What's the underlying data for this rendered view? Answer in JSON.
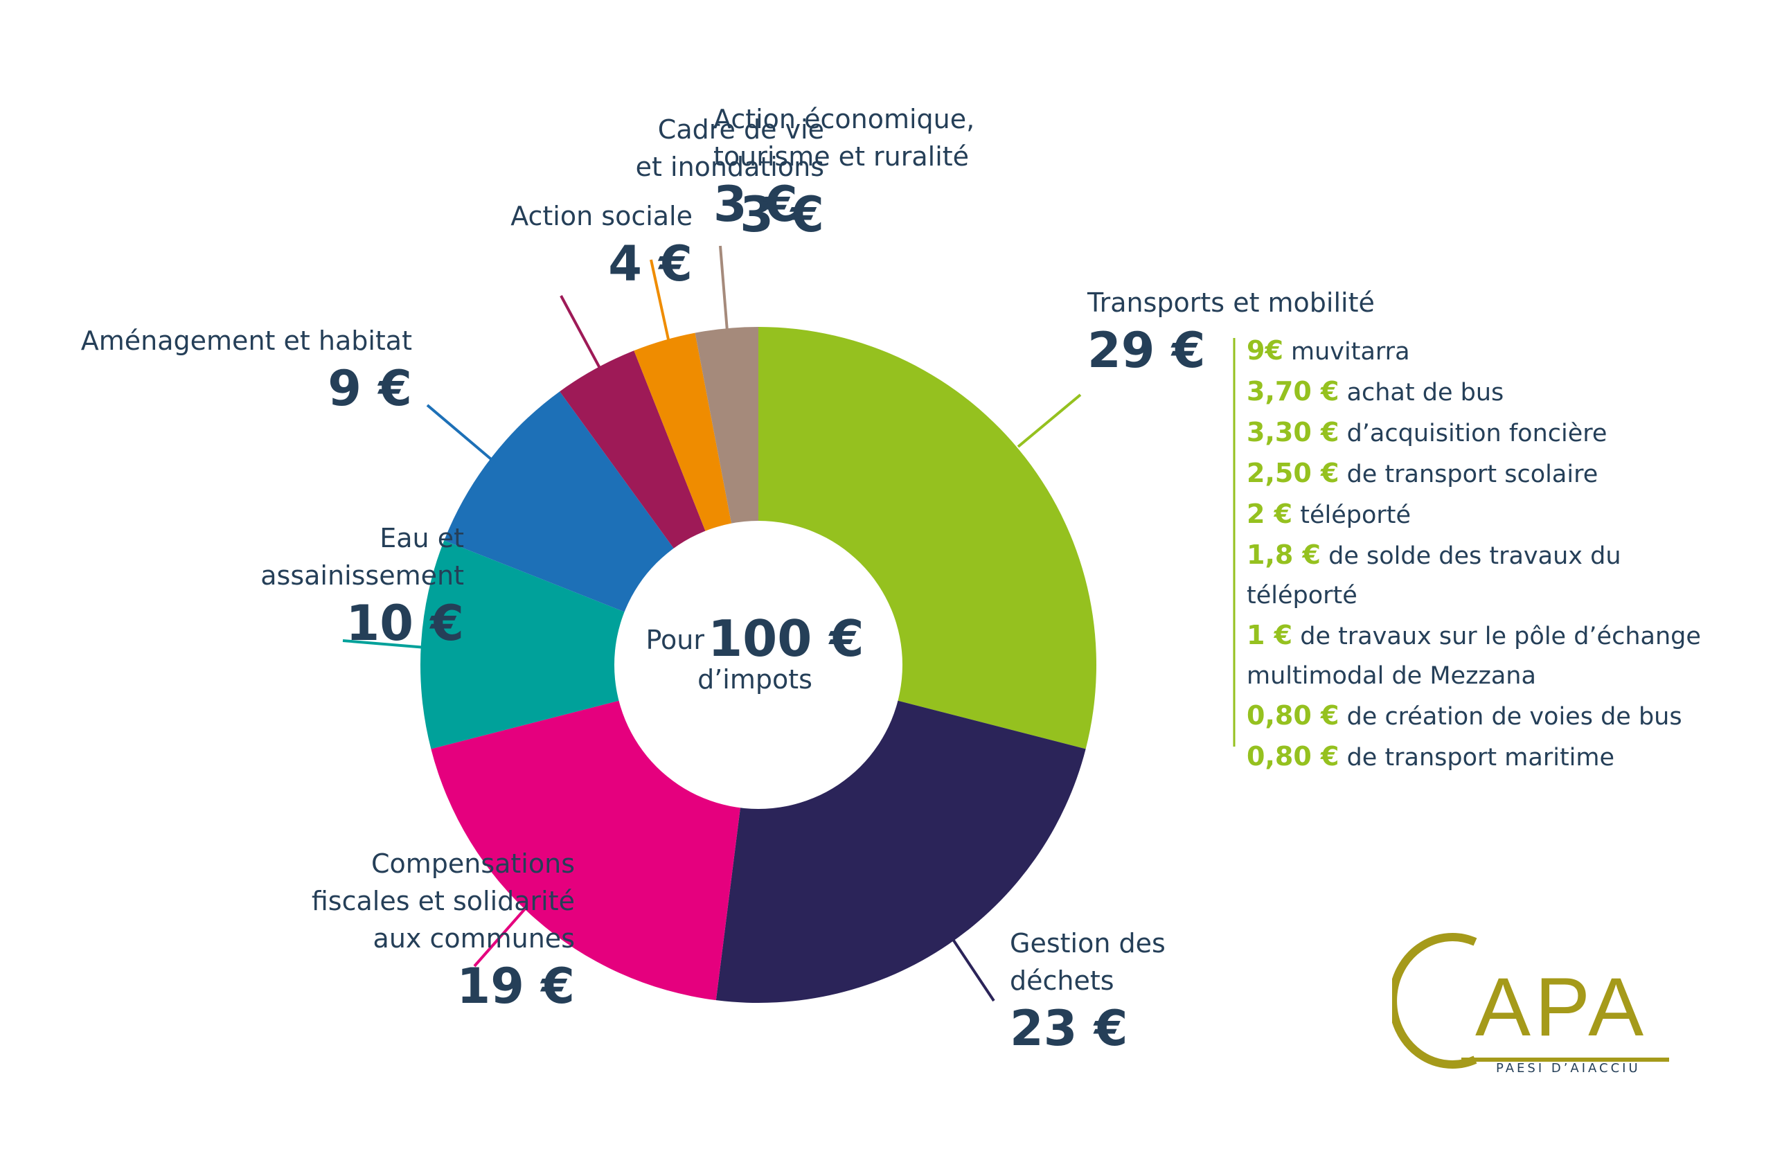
{
  "chart_data": {
    "type": "pie",
    "total_label": "100 €",
    "center": {
      "prefix": "Pour",
      "value": "100 €",
      "suffix": "d’impots"
    },
    "slices": [
      {
        "label": "Transports et mobilité",
        "value": 29,
        "value_label": "29 €",
        "color": "#95c11f"
      },
      {
        "label": "Gestion des\ndéchets",
        "value": 23,
        "value_label": "23 €",
        "color": "#2b2459"
      },
      {
        "label": "Compensations\nfiscales et solidarité\naux communes",
        "value": 19,
        "value_label": "19 €",
        "color": "#e5007e"
      },
      {
        "label": "Eau et\nassainissement",
        "value": 10,
        "value_label": "10 €",
        "color": "#00a19a"
      },
      {
        "label": "Aménagement et habitat",
        "value": 9,
        "value_label": "9 €",
        "color": "#1d70b7"
      },
      {
        "label": "Action sociale",
        "value": 4,
        "value_label": "4 €",
        "color": "#9e1a57"
      },
      {
        "label": "Cadre de vie\net inondations",
        "value": 3,
        "value_label": "3 €",
        "color": "#ef8c00"
      },
      {
        "label": "Action économique,\ntourisme et ruralité",
        "value": 3,
        "value_label": "3 €",
        "color": "#a58a7b"
      }
    ],
    "breakdown": {
      "parent": "Transports et mobilité",
      "accent": "#95c11f",
      "items": [
        {
          "amount": "9€",
          "text": "muvitarra",
          "cont": ""
        },
        {
          "amount": "3,70 €",
          "text": "achat de bus",
          "cont": ""
        },
        {
          "amount": "3,30 €",
          "text": "d’acquisition foncière",
          "cont": ""
        },
        {
          "amount": "2,50 €",
          "text": "de transport scolaire",
          "cont": ""
        },
        {
          "amount": "2 €",
          "text": "téléporté",
          "cont": ""
        },
        {
          "amount": "1,8 €",
          "text": "de solde des travaux du",
          "cont": "téléporté"
        },
        {
          "amount": "1 €",
          "text": "de travaux sur le pôle d’échange",
          "cont": "multimodal de Mezzana"
        },
        {
          "amount": "0,80 €",
          "text": "de création de voies de bus",
          "cont": ""
        },
        {
          "amount": "0,80 €",
          "text": "de transport maritime",
          "cont": ""
        }
      ]
    }
  },
  "logo": {
    "text": "CAPA",
    "tagline": "PAESI D’AIACCIU",
    "color": "#a59a1a"
  },
  "text_color": "#253f58"
}
